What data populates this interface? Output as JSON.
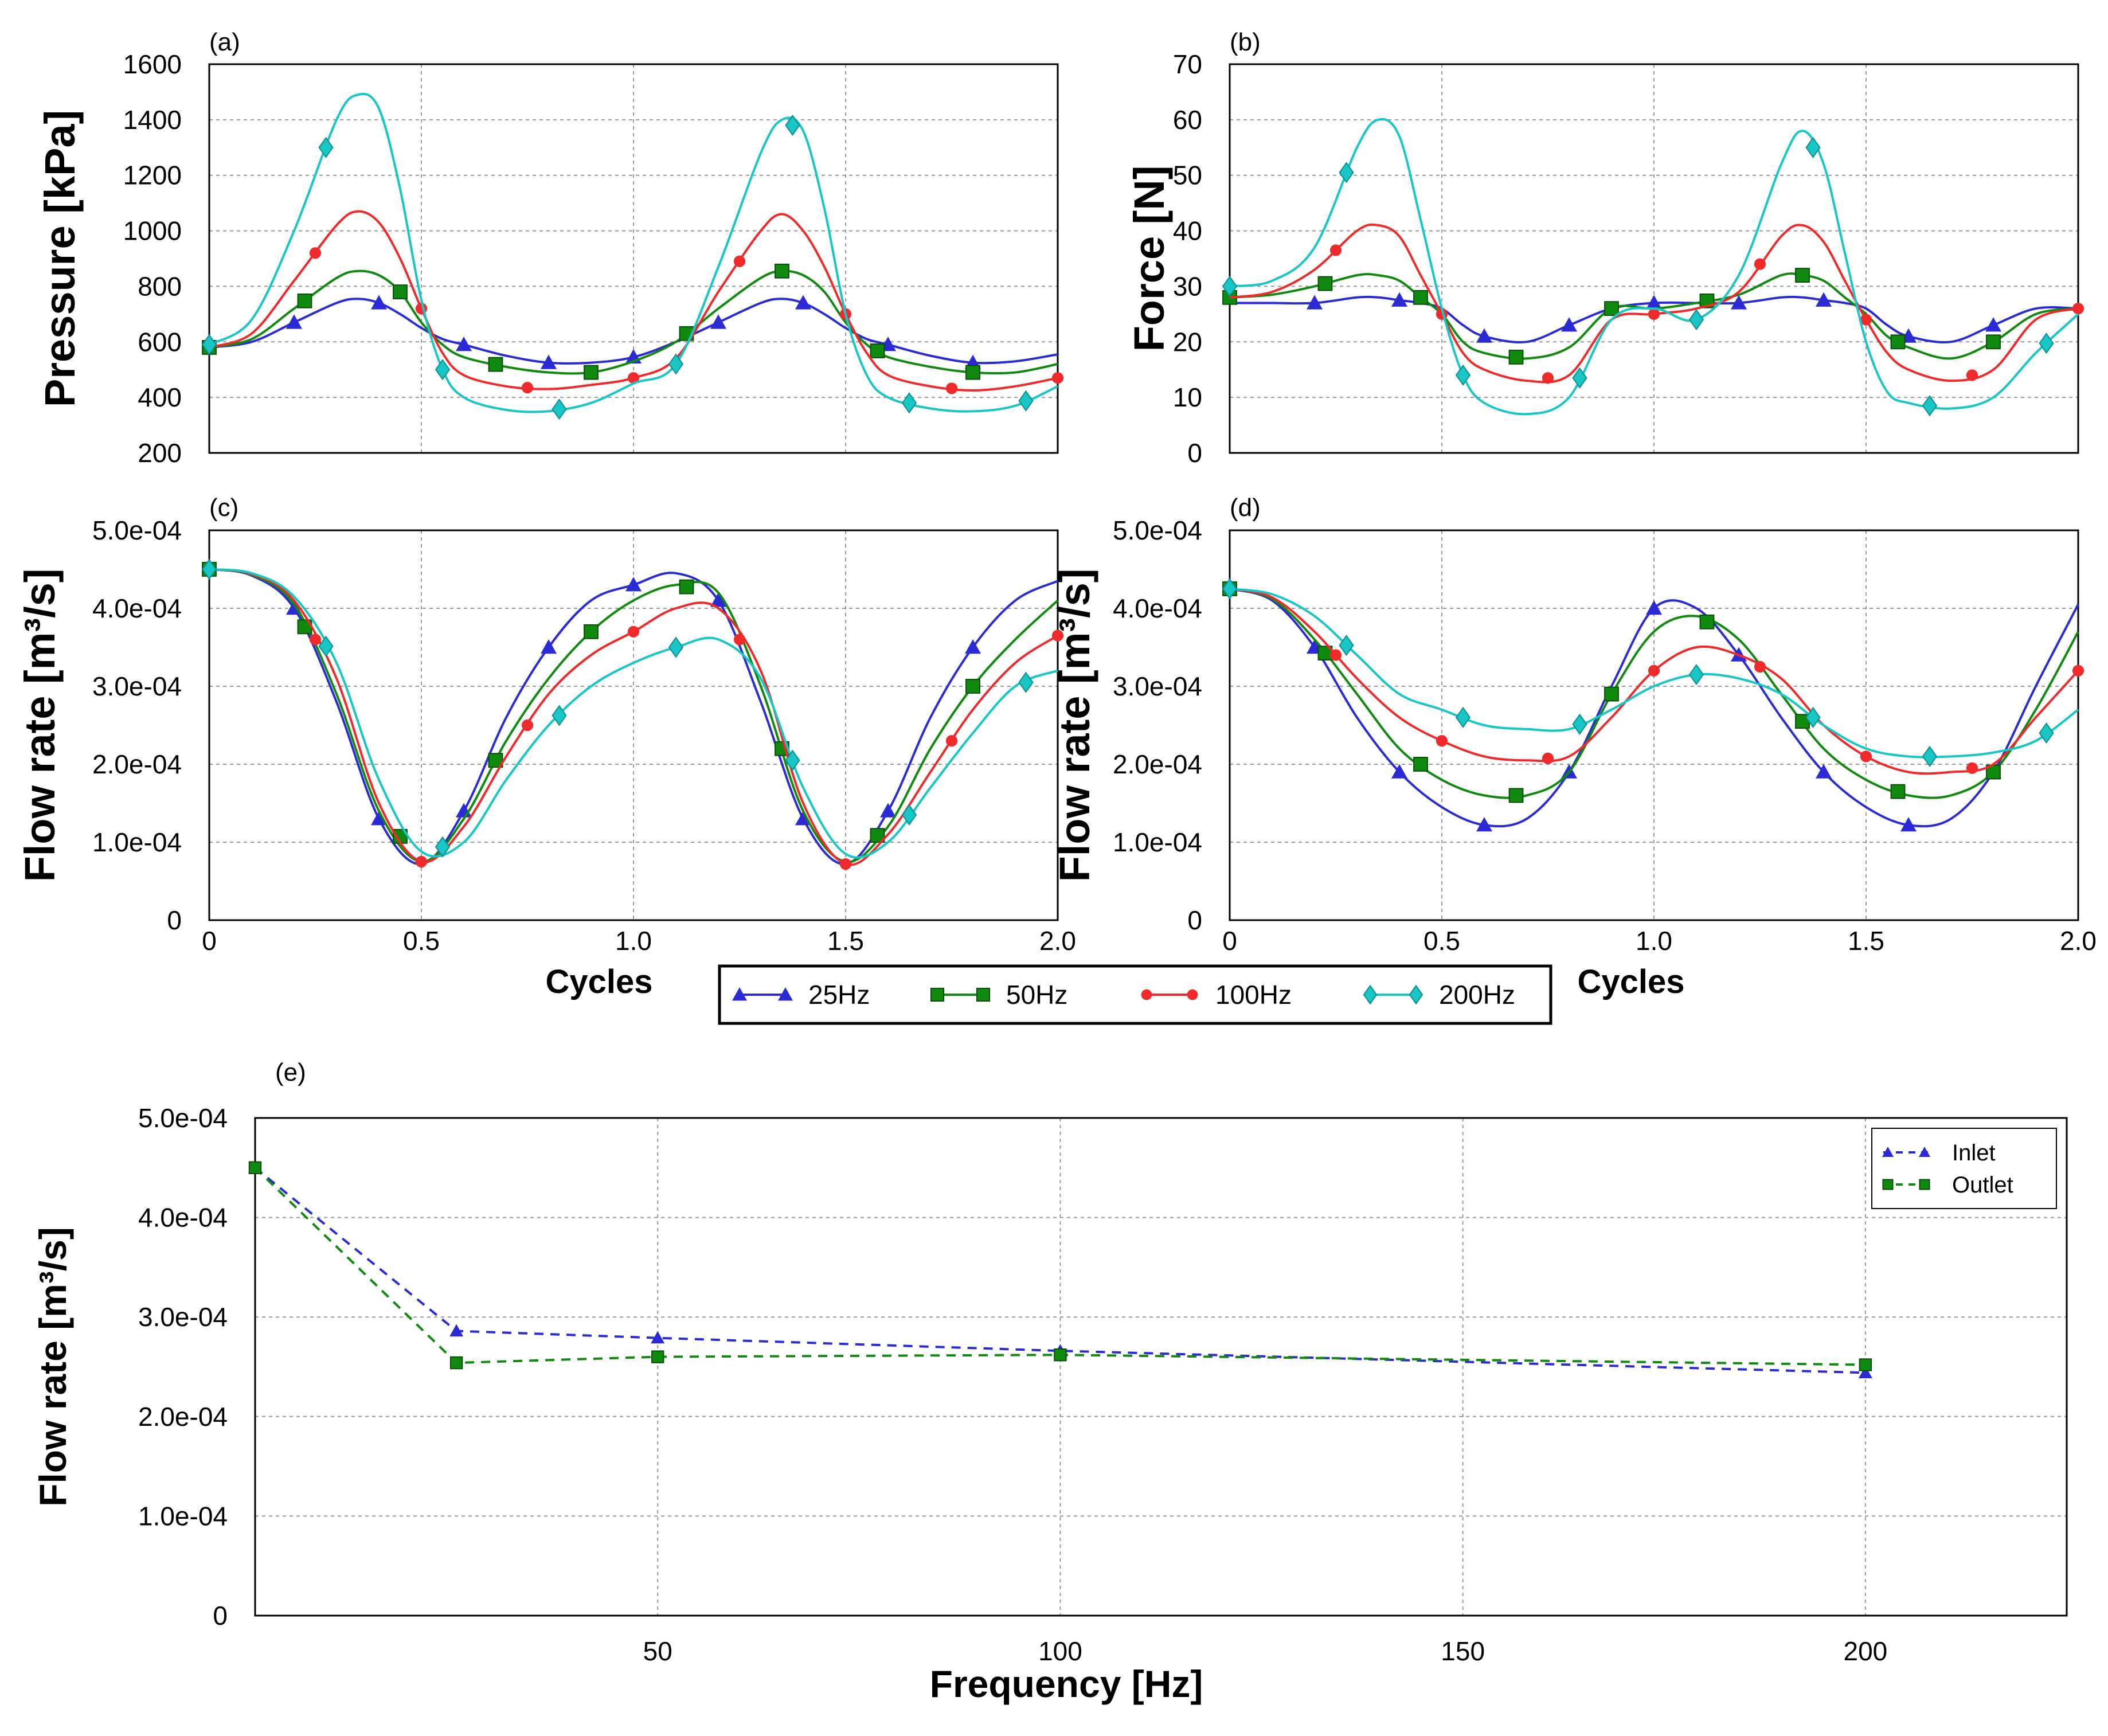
{
  "chart_data": [
    {
      "panel": "(a)",
      "type": "line",
      "title": "",
      "xlabel": "Cycles",
      "ylabel": "Pressure [kPa]",
      "xlim": [
        0,
        2.0
      ],
      "ylim": [
        200,
        1600
      ],
      "xticks": [],
      "yticks": [
        "200",
        "400",
        "600",
        "800",
        "1000",
        "1200",
        "1400",
        "1600"
      ],
      "ytick_values": [
        200,
        400,
        600,
        800,
        1000,
        1200,
        1400,
        1600
      ],
      "x": [
        0,
        0.1,
        0.2,
        0.3,
        0.35,
        0.4,
        0.45,
        0.5,
        0.55,
        0.6,
        0.7,
        0.8,
        0.9,
        1.0,
        1.1,
        1.2,
        1.3,
        1.35,
        1.4,
        1.45,
        1.5,
        1.55,
        1.6,
        1.7,
        1.8,
        1.9,
        2.0
      ],
      "series": [
        {
          "name": "25Hz",
          "values": [
            580,
            600,
            670,
            740,
            755,
            740,
            700,
            650,
            610,
            590,
            550,
            525,
            525,
            545,
            600,
            670,
            740,
            755,
            740,
            700,
            650,
            610,
            590,
            550,
            525,
            530,
            555
          ]
        },
        {
          "name": "50Hz",
          "values": [
            580,
            610,
            720,
            830,
            855,
            840,
            780,
            670,
            590,
            545,
            510,
            490,
            490,
            530,
            600,
            720,
            830,
            855,
            840,
            780,
            670,
            590,
            545,
            510,
            490,
            490,
            520
          ]
        },
        {
          "name": "100Hz",
          "values": [
            580,
            630,
            820,
            1020,
            1070,
            1030,
            900,
            720,
            560,
            480,
            440,
            430,
            445,
            470,
            540,
            780,
            1000,
            1060,
            1000,
            870,
            700,
            560,
            480,
            440,
            425,
            440,
            470
          ]
        },
        {
          "name": "200Hz",
          "values": [
            590,
            680,
            1000,
            1400,
            1490,
            1440,
            1150,
            750,
            500,
            400,
            355,
            350,
            380,
            450,
            520,
            870,
            1280,
            1400,
            1360,
            1080,
            700,
            480,
            400,
            360,
            350,
            370,
            440
          ]
        }
      ]
    },
    {
      "panel": "(b)",
      "type": "line",
      "title": "",
      "xlabel": "Cycles",
      "ylabel": "Force [N]",
      "xlim": [
        0,
        2.0
      ],
      "ylim": [
        0,
        70
      ],
      "xticks": [],
      "yticks": [
        "0",
        "10",
        "20",
        "30",
        "40",
        "50",
        "60",
        "70"
      ],
      "ytick_values": [
        0,
        10,
        20,
        30,
        40,
        50,
        60,
        70
      ],
      "x": [
        0,
        0.1,
        0.2,
        0.3,
        0.35,
        0.4,
        0.45,
        0.5,
        0.55,
        0.6,
        0.7,
        0.8,
        0.9,
        1.0,
        1.1,
        1.2,
        1.3,
        1.35,
        1.4,
        1.45,
        1.5,
        1.55,
        1.6,
        1.7,
        1.8,
        1.9,
        2.0
      ],
      "series": [
        {
          "name": "25Hz",
          "values": [
            27,
            27,
            27,
            28,
            28,
            27.5,
            27,
            26,
            23,
            21,
            20,
            23,
            26,
            27,
            27,
            27,
            28,
            28,
            27.5,
            27,
            26,
            23,
            21,
            20,
            23,
            26,
            26
          ]
        },
        {
          "name": "50Hz",
          "values": [
            28,
            28.5,
            30,
            32,
            32,
            31,
            28,
            25,
            20,
            18,
            17,
            19,
            26,
            26,
            27,
            28.5,
            32,
            32,
            31,
            28,
            25,
            21,
            19,
            17,
            20,
            25,
            26
          ]
        },
        {
          "name": "100Hz",
          "values": [
            28,
            29,
            33,
            40,
            41,
            39,
            32,
            25,
            18,
            15,
            13,
            14,
            24,
            25,
            26,
            29,
            39,
            41,
            38,
            31,
            24,
            18,
            15,
            13,
            15,
            24,
            26
          ]
        },
        {
          "name": "200Hz",
          "values": [
            30,
            31,
            37,
            55,
            60,
            57,
            42,
            26,
            14,
            9,
            7,
            10,
            24,
            26,
            24,
            32,
            52,
            58,
            52,
            36,
            20,
            11,
            9,
            8,
            10,
            18,
            25
          ]
        }
      ]
    },
    {
      "panel": "(c)",
      "type": "line",
      "title": "",
      "xlabel": "Cycles",
      "ylabel": "Flow rate [m³/s]",
      "xlim": [
        0,
        2.0
      ],
      "ylim": [
        0,
        0.0005
      ],
      "xticks": [
        "0",
        "0.5",
        "1.0",
        "1.5",
        "2.0"
      ],
      "xtick_values": [
        0,
        0.5,
        1.0,
        1.5,
        2.0
      ],
      "yticks": [
        "0",
        "1.0e-04",
        "2.0e-04",
        "3.0e-04",
        "4.0e-04",
        "5.0e-04"
      ],
      "ytick_values": [
        0,
        0.0001,
        0.0002,
        0.0003,
        0.0004,
        0.0005
      ],
      "x": [
        0,
        0.1,
        0.2,
        0.3,
        0.4,
        0.5,
        0.6,
        0.7,
        0.8,
        0.9,
        1.0,
        1.1,
        1.2,
        1.3,
        1.4,
        1.5,
        1.6,
        1.7,
        1.8,
        1.9,
        2.0
      ],
      "series": [
        {
          "name": "25Hz",
          "values": [
            0.00045,
            0.000442,
            0.0004,
            0.00028,
            0.00013,
            7.2e-05,
            0.00014,
            0.00026,
            0.00035,
            0.00041,
            0.00043,
            0.000445,
            0.00041,
            0.00028,
            0.00013,
            7.2e-05,
            0.00014,
            0.00026,
            0.00035,
            0.00041,
            0.000435
          ]
        },
        {
          "name": "50Hz",
          "values": [
            0.00045,
            0.000443,
            0.000405,
            0.00029,
            0.00014,
            7.5e-05,
            0.00013,
            0.00023,
            0.00031,
            0.00037,
            0.00041,
            0.00043,
            0.00042,
            0.0003,
            0.00014,
            7.5e-05,
            0.00012,
            0.00022,
            0.0003,
            0.00036,
            0.00041
          ]
        },
        {
          "name": "100Hz",
          "values": [
            0.00045,
            0.000444,
            0.00041,
            0.00031,
            0.00015,
            7.5e-05,
            0.00012,
            0.00021,
            0.00029,
            0.00034,
            0.00037,
            0.0004,
            0.0004,
            0.00032,
            0.00015,
            7.2e-05,
            0.00011,
            0.00019,
            0.00027,
            0.00033,
            0.000365
          ]
        },
        {
          "name": "200Hz",
          "values": [
            0.00045,
            0.000445,
            0.000415,
            0.00033,
            0.00018,
            8.8e-05,
            0.0001,
            0.00018,
            0.00025,
            0.0003,
            0.00033,
            0.00035,
            0.00036,
            0.00031,
            0.00017,
            8.5e-05,
            0.0001,
            0.00017,
            0.00024,
            0.0003,
            0.00032
          ]
        }
      ]
    },
    {
      "panel": "(d)",
      "type": "line",
      "title": "",
      "xlabel": "Cycles",
      "ylabel": "Flow rate [m³/s]",
      "xlim": [
        0,
        2.0
      ],
      "ylim": [
        0,
        0.0005
      ],
      "xticks": [
        "0",
        "0.5",
        "1.0",
        "1.5",
        "2.0"
      ],
      "xtick_values": [
        0,
        0.5,
        1.0,
        1.5,
        2.0
      ],
      "yticks": [
        "0",
        "1.0e-04",
        "2.0e-04",
        "3.0e-04",
        "4.0e-04",
        "5.0e-04"
      ],
      "ytick_values": [
        0,
        0.0001,
        0.0002,
        0.0003,
        0.0004,
        0.0005
      ],
      "x": [
        0,
        0.1,
        0.2,
        0.3,
        0.4,
        0.5,
        0.6,
        0.7,
        0.8,
        0.9,
        1.0,
        1.1,
        1.2,
        1.3,
        1.4,
        1.5,
        1.6,
        1.7,
        1.8,
        1.9,
        2.0
      ],
      "series": [
        {
          "name": "25Hz",
          "values": [
            0.000425,
            0.00041,
            0.00035,
            0.00026,
            0.00019,
            0.000145,
            0.000122,
            0.00013,
            0.00019,
            0.0003,
            0.0004,
            0.0004,
            0.00034,
            0.00026,
            0.00019,
            0.000145,
            0.000122,
            0.00013,
            0.00019,
            0.0003,
            0.000405
          ]
        },
        {
          "name": "50Hz",
          "values": [
            0.000425,
            0.000412,
            0.00036,
            0.00029,
            0.00022,
            0.00018,
            0.00016,
            0.00016,
            0.00019,
            0.00029,
            0.00037,
            0.00039,
            0.00036,
            0.00029,
            0.00022,
            0.00018,
            0.00016,
            0.00016,
            0.00019,
            0.00027,
            0.00037
          ]
        },
        {
          "name": "100Hz",
          "values": [
            0.000425,
            0.000414,
            0.00037,
            0.00031,
            0.00026,
            0.00023,
            0.00021,
            0.000205,
            0.00021,
            0.00026,
            0.00032,
            0.00035,
            0.00034,
            0.00031,
            0.00025,
            0.00021,
            0.00019,
            0.00019,
            0.0002,
            0.00026,
            0.00032
          ]
        },
        {
          "name": "200Hz",
          "values": [
            0.000425,
            0.000418,
            0.00039,
            0.00034,
            0.00029,
            0.00027,
            0.00025,
            0.000245,
            0.000245,
            0.00027,
            0.0003,
            0.000315,
            0.00031,
            0.00029,
            0.00025,
            0.00022,
            0.00021,
            0.00021,
            0.000215,
            0.00023,
            0.00027
          ]
        }
      ]
    },
    {
      "panel": "(e)",
      "type": "line",
      "title": "",
      "xlabel": "Frequency [Hz]",
      "ylabel": "Flow rate [m³/s]",
      "xlim": [
        0,
        225
      ],
      "ylim": [
        0,
        0.0005
      ],
      "xticks": [
        "50",
        "100",
        "150",
        "200"
      ],
      "xtick_values": [
        50,
        100,
        150,
        200
      ],
      "yticks": [
        "0",
        "1.0e-04",
        "2.0e-04",
        "3.0e-04",
        "4.0e-04",
        "5.0e-04"
      ],
      "ytick_values": [
        0,
        0.0001,
        0.0002,
        0.0003,
        0.0004,
        0.0005
      ],
      "legend_position": "top-right",
      "x": [
        0,
        25,
        50,
        100,
        200
      ],
      "series": [
        {
          "name": "Inlet",
          "values": [
            0.00045,
            0.000286,
            0.000279,
            0.000266,
            0.000244
          ]
        },
        {
          "name": "Outlet",
          "values": [
            0.00045,
            0.000254,
            0.00026,
            0.000262,
            0.000252
          ]
        }
      ]
    }
  ],
  "legend": {
    "position": "bottom-center",
    "entries": [
      "25Hz",
      "50Hz",
      "100Hz",
      "200Hz"
    ]
  },
  "colors": {
    "25Hz": "#2b2bd6",
    "50Hz": "#0f8a0f",
    "100Hz": "#f02a2a",
    "200Hz": "#18c6c6",
    "Inlet": "#2b2bd6",
    "Outlet": "#0f8a0f"
  },
  "markers": {
    "25Hz": "triangle-icon",
    "50Hz": "square-icon",
    "100Hz": "circle-icon",
    "200Hz": "diamond-icon",
    "Inlet": "triangle-icon",
    "Outlet": "square-icon"
  }
}
